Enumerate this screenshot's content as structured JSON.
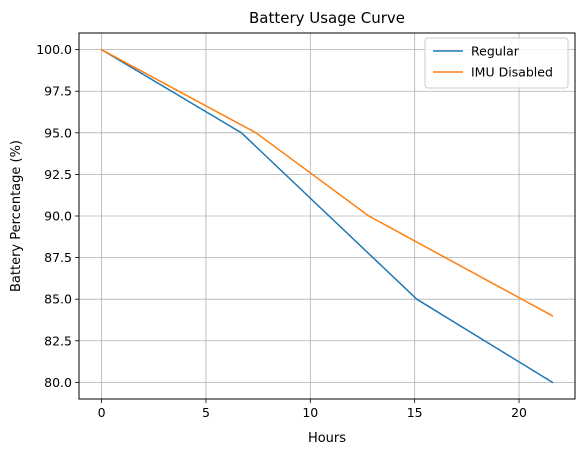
{
  "chart_data": {
    "type": "line",
    "title": "Battery Usage Curve",
    "xlabel": "Hours",
    "ylabel": "Battery Percentage (%)",
    "xlim": [
      -1.08,
      22.68
    ],
    "ylim": [
      79.0,
      101.0
    ],
    "xticks": [
      0,
      5,
      10,
      15,
      20
    ],
    "yticks": [
      80.0,
      82.5,
      85.0,
      87.5,
      90.0,
      92.5,
      95.0,
      97.5,
      100.0
    ],
    "xtick_labels": [
      "0",
      "5",
      "10",
      "15",
      "20"
    ],
    "ytick_labels": [
      "80.0",
      "82.5",
      "85.0",
      "87.5",
      "90.0",
      "92.5",
      "95.0",
      "97.5",
      "100.0"
    ],
    "grid": true,
    "legend_position": "top-right",
    "series": [
      {
        "name": "Regular",
        "color": "#1f77b4",
        "x": [
          0,
          6.7,
          15.1,
          21.6
        ],
        "y": [
          100.0,
          95.0,
          85.0,
          80.0
        ]
      },
      {
        "name": "IMU Disabled",
        "color": "#ff7f0e",
        "x": [
          0,
          7.4,
          12.8,
          21.6
        ],
        "y": [
          100.0,
          95.0,
          90.0,
          84.0
        ]
      }
    ]
  }
}
